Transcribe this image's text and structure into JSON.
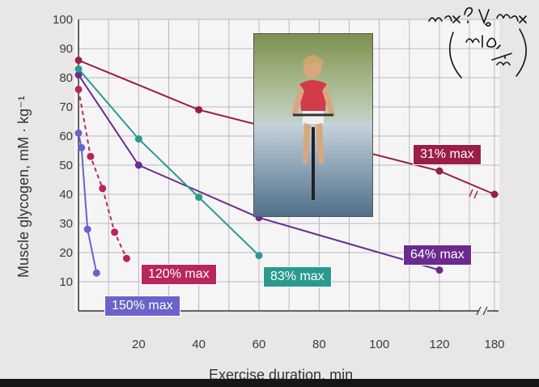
{
  "chart_data": {
    "type": "line",
    "ylabel": "Muscle glycogen, mM · kg⁻¹",
    "xlabel": "Exercise duration, min",
    "xlim": [
      0,
      180
    ],
    "ylim": [
      0,
      100
    ],
    "x_ticks": [
      "20",
      "40",
      "60",
      "80",
      "100",
      "120",
      "180"
    ],
    "y_ticks": [
      "10",
      "20",
      "30",
      "40",
      "50",
      "60",
      "70",
      "80",
      "90",
      "100"
    ],
    "axis_break": "between 120 and 180 on x-axis",
    "grid": true,
    "series": [
      {
        "name": "31% max",
        "color": "#9a1e45",
        "points": [
          [
            0,
            86
          ],
          [
            40,
            69
          ],
          [
            120,
            48
          ],
          [
            180,
            40
          ]
        ]
      },
      {
        "name": "64% max",
        "color": "#6b2a8e",
        "points": [
          [
            0,
            81
          ],
          [
            20,
            50
          ],
          [
            60,
            32
          ],
          [
            120,
            14
          ]
        ]
      },
      {
        "name": "83% max",
        "color": "#2a9a8e",
        "points": [
          [
            0,
            83
          ],
          [
            20,
            59
          ],
          [
            40,
            39
          ],
          [
            60,
            19
          ]
        ]
      },
      {
        "name": "120% max",
        "color": "#b8265b",
        "points": [
          [
            0,
            76
          ],
          [
            4,
            53
          ],
          [
            8,
            42
          ],
          [
            12,
            27
          ],
          [
            16,
            18
          ]
        ]
      },
      {
        "name": "150% max",
        "color": "#6a63c9",
        "points": [
          [
            0,
            61
          ],
          [
            1,
            56
          ],
          [
            3,
            28
          ],
          [
            6,
            13
          ]
        ]
      }
    ]
  },
  "annotation": {
    "line1": "max? V̇O₂ max",
    "line2": "(ml O₂ / min)"
  },
  "photo": {
    "description_icon": "cyclist-photo"
  }
}
